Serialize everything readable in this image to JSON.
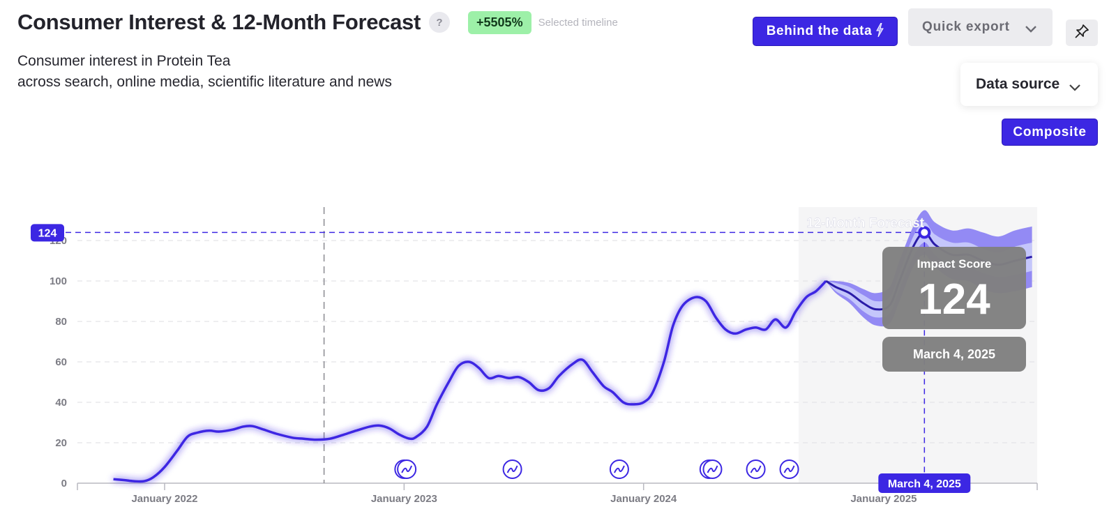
{
  "header": {
    "title": "Consumer Interest & 12-Month Forecast",
    "help": "?",
    "growth_badge": "+5505%",
    "growth_label": "Selected timeline",
    "subtitle_line1": "Consumer interest in Protein Tea",
    "subtitle_line2": "across search, online media, scientific literature and news"
  },
  "toolbar": {
    "behind_label": "Behind the data",
    "export_label": "Quick export",
    "data_source_label": "Data source",
    "composite_label": "Composite"
  },
  "colors": {
    "accent": "#3c27e3",
    "band_outer": "#8d84f3",
    "band_inner": "#c4c6fb",
    "forecast_bg": "#f5f5f6",
    "tooltip_bg": "#808080",
    "badge_green": "#9df0a8"
  },
  "chart_data": {
    "type": "line",
    "title": "Consumer Interest & 12-Month Forecast",
    "x_unit": "date",
    "ylim": [
      0,
      124
    ],
    "yticks": [
      0,
      20,
      40,
      60,
      80,
      100,
      120
    ],
    "xticks": [
      {
        "label": "January 2022",
        "date": "2022-01-01"
      },
      {
        "label": "January 2023",
        "date": "2023-01-01"
      },
      {
        "label": "January 2024",
        "date": "2024-01-01"
      },
      {
        "label": "January 2025",
        "date": "2025-01-01"
      }
    ],
    "grid": true,
    "series": [
      {
        "kind": "historical",
        "points": [
          [
            "2021-10-15",
            2
          ],
          [
            "2021-11-01",
            1.5
          ],
          [
            "2021-11-15",
            1
          ],
          [
            "2021-12-01",
            1
          ],
          [
            "2021-12-15",
            3
          ],
          [
            "2022-01-01",
            8
          ],
          [
            "2022-01-20",
            16
          ],
          [
            "2022-02-05",
            23
          ],
          [
            "2022-02-20",
            25
          ],
          [
            "2022-03-10",
            26
          ],
          [
            "2022-03-25",
            25.5
          ],
          [
            "2022-04-15",
            26.5
          ],
          [
            "2022-05-01",
            28
          ],
          [
            "2022-05-15",
            28.2
          ],
          [
            "2022-06-01",
            26.5
          ],
          [
            "2022-06-20",
            24.5
          ],
          [
            "2022-07-15",
            22.5
          ],
          [
            "2022-08-01",
            22
          ],
          [
            "2022-08-20",
            21.5
          ],
          [
            "2022-09-10",
            22
          ],
          [
            "2022-10-01",
            24
          ],
          [
            "2022-10-20",
            26
          ],
          [
            "2022-11-10",
            28
          ],
          [
            "2022-11-25",
            28.5
          ],
          [
            "2022-12-10",
            27
          ],
          [
            "2022-12-25",
            24
          ],
          [
            "2023-01-10",
            22
          ],
          [
            "2023-01-20",
            23
          ],
          [
            "2023-02-05",
            28
          ],
          [
            "2023-02-20",
            39
          ],
          [
            "2023-03-10",
            50
          ],
          [
            "2023-03-25",
            58
          ],
          [
            "2023-04-10",
            60
          ],
          [
            "2023-04-25",
            57
          ],
          [
            "2023-05-10",
            52
          ],
          [
            "2023-05-25",
            53
          ],
          [
            "2023-06-10",
            52
          ],
          [
            "2023-06-25",
            52.5
          ],
          [
            "2023-07-10",
            50
          ],
          [
            "2023-07-25",
            46
          ],
          [
            "2023-08-10",
            47
          ],
          [
            "2023-08-25",
            53
          ],
          [
            "2023-09-15",
            59
          ],
          [
            "2023-09-30",
            61
          ],
          [
            "2023-10-15",
            55
          ],
          [
            "2023-11-01",
            48
          ],
          [
            "2023-11-15",
            45
          ],
          [
            "2023-12-01",
            40
          ],
          [
            "2023-12-15",
            39
          ],
          [
            "2024-01-01",
            40
          ],
          [
            "2024-01-15",
            45
          ],
          [
            "2024-02-01",
            60
          ],
          [
            "2024-02-15",
            78
          ],
          [
            "2024-03-01",
            88
          ],
          [
            "2024-03-20",
            92
          ],
          [
            "2024-04-05",
            90
          ],
          [
            "2024-04-20",
            82
          ],
          [
            "2024-05-05",
            76
          ],
          [
            "2024-05-20",
            74
          ],
          [
            "2024-06-05",
            76
          ],
          [
            "2024-06-20",
            77
          ],
          [
            "2024-07-05",
            76
          ],
          [
            "2024-07-20",
            81
          ],
          [
            "2024-08-05",
            77
          ],
          [
            "2024-08-20",
            85
          ],
          [
            "2024-09-05",
            92
          ],
          [
            "2024-09-20",
            95
          ],
          [
            "2024-10-05",
            100
          ]
        ]
      },
      {
        "kind": "forecast",
        "points": [
          [
            "2024-10-05",
            100
          ],
          [
            "2024-10-20",
            97
          ],
          [
            "2024-11-10",
            94
          ],
          [
            "2024-12-01",
            89
          ],
          [
            "2024-12-20",
            86
          ],
          [
            "2025-01-10",
            88
          ],
          [
            "2025-01-25",
            100
          ],
          [
            "2025-02-15",
            117
          ],
          [
            "2025-03-04",
            124
          ],
          [
            "2025-03-20",
            118
          ],
          [
            "2025-04-15",
            113
          ],
          [
            "2025-05-10",
            113
          ],
          [
            "2025-06-01",
            110
          ],
          [
            "2025-06-25",
            108
          ],
          [
            "2025-07-20",
            110
          ],
          [
            "2025-08-15",
            112
          ]
        ],
        "band_inner_halfwidth": [
          0,
          2,
          3,
          4,
          4,
          4,
          4,
          5,
          5,
          5,
          6,
          6,
          6,
          6,
          7,
          7
        ],
        "band_outer_halfwidth": [
          0,
          3,
          5,
          7,
          8,
          9,
          10,
          10,
          11,
          11,
          12,
          13,
          14,
          14,
          15,
          15
        ]
      }
    ],
    "forecast_label": "12-Month Forecast",
    "forecast_start": "2024-10-05",
    "reference_line_date": "2022-09-01",
    "highlight": {
      "date_label": "March 4, 2025",
      "date": "2025-03-04",
      "value": 124,
      "value_label": "124",
      "tooltip_title": "Impact Score"
    },
    "event_markers": [
      "2023-01-01",
      "2023-01-05",
      "2023-06-15",
      "2023-11-25",
      "2024-04-10",
      "2024-04-15",
      "2024-06-20",
      "2024-08-10"
    ]
  }
}
